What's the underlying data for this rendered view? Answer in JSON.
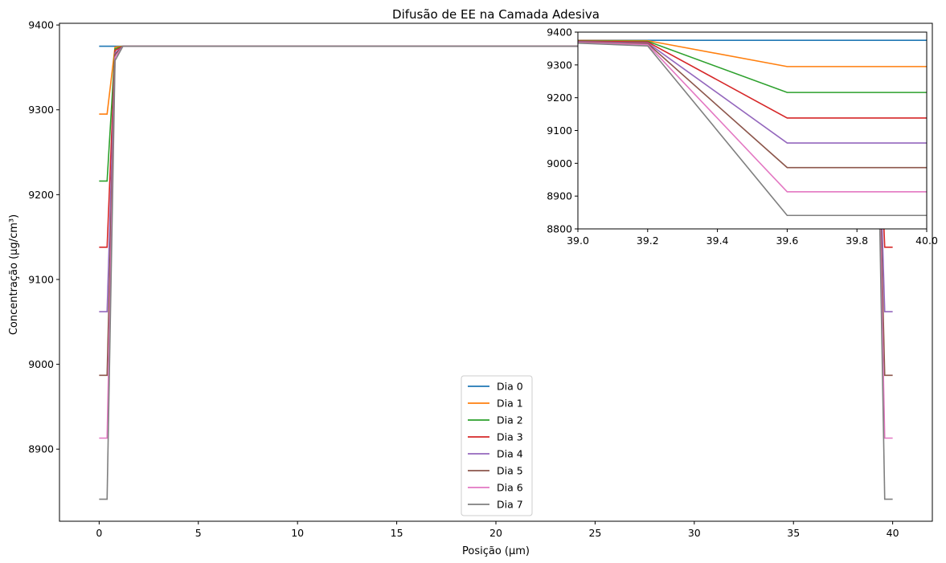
{
  "chart_data": [
    {
      "type": "line",
      "title": "Difusão de EE na Camada Adesiva",
      "xlabel": "Posição (µm)",
      "ylabel": "Concentração (µg/cm³)",
      "xlim": [
        -2,
        42
      ],
      "ylim": [
        8815,
        9402
      ],
      "xticks": [
        0,
        5,
        10,
        15,
        20,
        25,
        30,
        35,
        40
      ],
      "yticks": [
        8900,
        9000,
        9100,
        9200,
        9300,
        9400
      ],
      "grid": false,
      "legend_position": "bottom-center",
      "series": [
        {
          "name": "Dia 0",
          "color": "#1f77b4",
          "x": [
            0,
            0.4,
            0.8,
            1.2,
            38.8,
            39.2,
            39.6,
            40
          ],
          "y": [
            9375,
            9375,
            9375,
            9375,
            9375,
            9375,
            9375,
            9375
          ]
        },
        {
          "name": "Dia 1",
          "color": "#ff7f0e",
          "x": [
            0,
            0.4,
            0.8,
            1.2,
            38.8,
            39.2,
            39.6,
            40
          ],
          "y": [
            9295,
            9295,
            9374,
            9375,
            9375,
            9374,
            9295,
            9295
          ]
        },
        {
          "name": "Dia 2",
          "color": "#2ca02c",
          "x": [
            0,
            0.4,
            0.8,
            1.2,
            38.8,
            39.2,
            39.6,
            40
          ],
          "y": [
            9216,
            9216,
            9372,
            9375,
            9375,
            9372,
            9216,
            9216
          ]
        },
        {
          "name": "Dia 3",
          "color": "#d62728",
          "x": [
            0,
            0.4,
            0.8,
            1.2,
            38.8,
            39.2,
            39.6,
            40
          ],
          "y": [
            9138,
            9138,
            9370,
            9375,
            9375,
            9370,
            9138,
            9138
          ]
        },
        {
          "name": "Dia 4",
          "color": "#9467bd",
          "x": [
            0,
            0.4,
            0.8,
            1.2,
            38.8,
            39.2,
            39.6,
            40
          ],
          "y": [
            9062,
            9062,
            9367,
            9375,
            9375,
            9367,
            9062,
            9062
          ]
        },
        {
          "name": "Dia 5",
          "color": "#8c564b",
          "x": [
            0,
            0.4,
            0.8,
            1.2,
            38.8,
            39.2,
            39.6,
            40
          ],
          "y": [
            8987,
            8987,
            9365,
            9375,
            9375,
            9365,
            8987,
            8987
          ]
        },
        {
          "name": "Dia 6",
          "color": "#e377c2",
          "x": [
            0,
            0.4,
            0.8,
            1.2,
            38.8,
            39.2,
            39.6,
            40
          ],
          "y": [
            8913,
            8913,
            9362,
            9375,
            9375,
            9362,
            8913,
            8913
          ]
        },
        {
          "name": "Dia 7",
          "color": "#7f7f7f",
          "x": [
            0,
            0.4,
            0.8,
            1.2,
            38.8,
            39.2,
            39.6,
            40
          ],
          "y": [
            8841,
            8841,
            9358,
            9375,
            9375,
            9358,
            8841,
            8841
          ]
        }
      ]
    },
    {
      "type": "line",
      "title": "",
      "xlabel": "",
      "ylabel": "",
      "xlim": [
        39.0,
        40.0
      ],
      "ylim": [
        8800,
        9400
      ],
      "xticks": [
        39.0,
        39.2,
        39.4,
        39.6,
        39.8,
        40.0
      ],
      "xtick_labels": [
        "39.0",
        "39.2",
        "39.4",
        "39.6",
        "39.8",
        "40.0"
      ],
      "yticks": [
        8800,
        8900,
        9000,
        9100,
        9200,
        9300,
        9400
      ],
      "grid": false,
      "legend_position": "none",
      "series": [
        {
          "color": "#1f77b4",
          "x": [
            38.8,
            39.2,
            39.6,
            40
          ],
          "y": [
            9375,
            9375,
            9375,
            9375
          ]
        },
        {
          "color": "#ff7f0e",
          "x": [
            38.8,
            39.2,
            39.6,
            40
          ],
          "y": [
            9375,
            9374,
            9295,
            9295
          ]
        },
        {
          "color": "#2ca02c",
          "x": [
            38.8,
            39.2,
            39.6,
            40
          ],
          "y": [
            9375,
            9372,
            9216,
            9216
          ]
        },
        {
          "color": "#d62728",
          "x": [
            38.8,
            39.2,
            39.6,
            40
          ],
          "y": [
            9375,
            9370,
            9138,
            9138
          ]
        },
        {
          "color": "#9467bd",
          "x": [
            38.8,
            39.2,
            39.6,
            40
          ],
          "y": [
            9375,
            9367,
            9062,
            9062
          ]
        },
        {
          "color": "#8c564b",
          "x": [
            38.8,
            39.2,
            39.6,
            40
          ],
          "y": [
            9375,
            9365,
            8987,
            8987
          ]
        },
        {
          "color": "#e377c2",
          "x": [
            38.8,
            39.2,
            39.6,
            40
          ],
          "y": [
            9375,
            9362,
            8913,
            8913
          ]
        },
        {
          "color": "#7f7f7f",
          "x": [
            38.8,
            39.2,
            39.6,
            40
          ],
          "y": [
            9375,
            9358,
            8841,
            8841
          ]
        }
      ]
    }
  ]
}
